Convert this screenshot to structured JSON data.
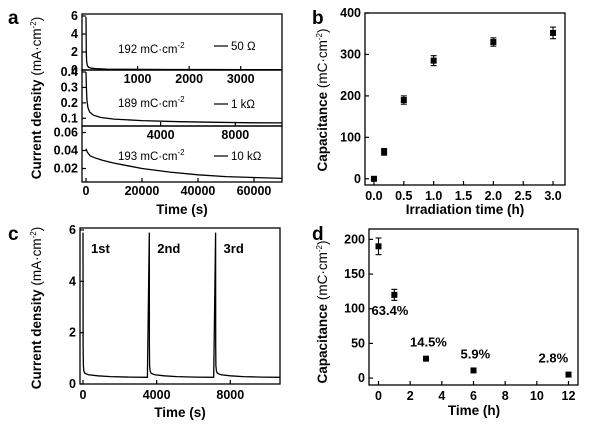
{
  "panel_labels": {
    "a": "a",
    "b": "b",
    "c": "c",
    "d": "d"
  },
  "chart_data": [
    {
      "panel": "a",
      "type": "line",
      "ylabel_main": "Current density ",
      "ylabel_unit": "(mA·cm",
      "ylabel_sup": "-2",
      "ylabel_close": ")",
      "xlabel": "Time (s)",
      "subplots": [
        {
          "series": "50 Ω",
          "annotation_main": "192 mC·cm",
          "annotation_sup": "-2",
          "legend_label": "50 Ω",
          "xlim": [
            0,
            3800
          ],
          "ylim": [
            0,
            6
          ],
          "xticks": [
            1000,
            2000,
            3000
          ],
          "yticks": [
            0,
            2,
            4,
            6
          ],
          "x": [
            0,
            5,
            12,
            25,
            50,
            100,
            200,
            400,
            800,
            1600,
            2400,
            3200,
            3800
          ],
          "y": [
            5.9,
            2.0,
            1.0,
            0.5,
            0.3,
            0.2,
            0.14,
            0.1,
            0.08,
            0.06,
            0.05,
            0.045,
            0.04
          ]
        },
        {
          "series": "1 kΩ",
          "annotation_main": "189 mC·cm",
          "annotation_sup": "-2",
          "legend_label": "1 kΩ",
          "xlim": [
            0,
            10500
          ],
          "ylim": [
            0.05,
            0.4
          ],
          "xticks": [
            4000,
            8000
          ],
          "yticks": [
            0.1,
            0.2,
            0.3,
            0.4
          ],
          "x": [
            0,
            20,
            50,
            100,
            200,
            400,
            800,
            1500,
            3000,
            5000,
            7000,
            9000,
            10500
          ],
          "y": [
            0.4,
            0.3,
            0.22,
            0.17,
            0.14,
            0.12,
            0.105,
            0.095,
            0.085,
            0.078,
            0.074,
            0.071,
            0.07
          ]
        },
        {
          "series": "10 kΩ",
          "annotation_main": "193 mC·cm",
          "annotation_sup": "-2",
          "legend_label": "10 kΩ",
          "xlim": [
            0,
            70000
          ],
          "ylim": [
            0.005,
            0.065
          ],
          "xticks": [
            0,
            20000,
            40000,
            60000
          ],
          "yticks": [
            0.02,
            0.04,
            0.06
          ],
          "x": [
            0,
            500,
            1500,
            3000,
            6000,
            10000,
            15000,
            20000,
            30000,
            40000,
            50000,
            60000,
            70000
          ],
          "y": [
            0.042,
            0.038,
            0.034,
            0.032,
            0.029,
            0.026,
            0.023,
            0.02,
            0.016,
            0.013,
            0.011,
            0.01,
            0.009
          ]
        }
      ]
    },
    {
      "panel": "b",
      "type": "scatter",
      "xlabel": "Irradiation time (h)",
      "ylabel_main": "Capacitance ",
      "ylabel_unit": "(mC·cm",
      "ylabel_sup": "-2",
      "ylabel_close": ")",
      "xlim": [
        -0.15,
        3.2
      ],
      "ylim": [
        -15,
        400
      ],
      "xticks": [
        0.0,
        0.5,
        1.0,
        1.5,
        2.0,
        2.5,
        3.0
      ],
      "xtick_labels": [
        "0.0",
        "0.5",
        "1.0",
        "1.5",
        "2.0",
        "2.5",
        "3.0"
      ],
      "yticks": [
        0,
        100,
        200,
        300,
        400
      ],
      "x": [
        0,
        0.17,
        0.5,
        1.0,
        2.0,
        3.0
      ],
      "y": [
        0,
        65,
        190,
        285,
        330,
        352
      ],
      "yerr": [
        3,
        8,
        10,
        12,
        10,
        14
      ]
    },
    {
      "panel": "c",
      "type": "line",
      "xlabel": "Time (s)",
      "ylabel_main": "Current density ",
      "ylabel_unit": "(mA·cm",
      "ylabel_sup": "-2",
      "ylabel_close": ")",
      "xlim": [
        0,
        10700
      ],
      "ylim": [
        0,
        6
      ],
      "xticks": [
        0,
        4000,
        8000
      ],
      "yticks": [
        0,
        2,
        4,
        6
      ],
      "cycle_labels": [
        "1st",
        "2nd",
        "3rd"
      ],
      "cycle_starts": [
        0,
        3600,
        7200
      ],
      "cycle_length": 3500,
      "cycle_profile": {
        "dt": [
          0,
          5,
          20,
          50,
          100,
          300,
          800,
          1500,
          2500,
          3500
        ],
        "y": [
          5.9,
          1.5,
          0.7,
          0.5,
          0.42,
          0.36,
          0.32,
          0.29,
          0.27,
          0.26
        ]
      }
    },
    {
      "panel": "d",
      "type": "scatter",
      "xlabel": "Time (h)",
      "ylabel_main": "Capacitance ",
      "ylabel_unit": "(mC·cm",
      "ylabel_sup": "-2",
      "ylabel_close": ")",
      "xlim": [
        -0.6,
        12.6
      ],
      "ylim": [
        -10,
        215
      ],
      "xticks": [
        0,
        2,
        4,
        6,
        8,
        10,
        12
      ],
      "yticks": [
        0,
        50,
        100,
        150,
        200
      ],
      "x": [
        0,
        1,
        3,
        6,
        12
      ],
      "y": [
        190,
        120,
        28,
        11,
        5
      ],
      "yerr": [
        12,
        8,
        3,
        2,
        1
      ],
      "annotations": [
        "63.4%",
        "14.5%",
        "5.9%",
        "2.8%"
      ]
    }
  ]
}
